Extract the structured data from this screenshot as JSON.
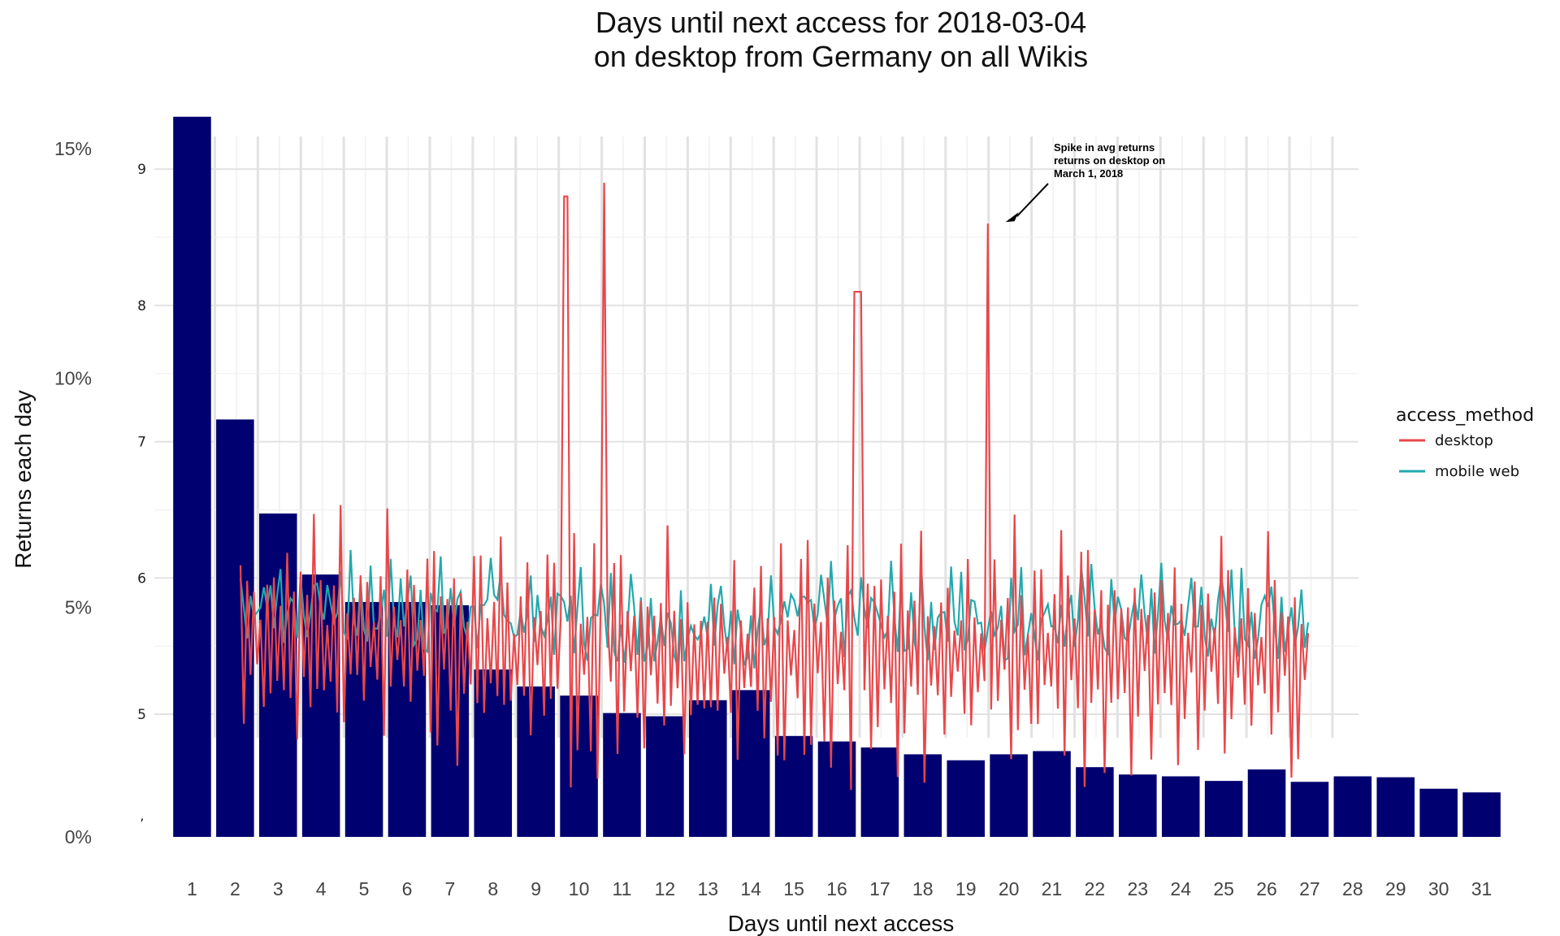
{
  "chart_data": {
    "type": "bar",
    "title": "Days until next access for 2018-03-04\non desktop from Germany on all Wikis",
    "xlabel": "Days until next access",
    "ylabel": "Returns each day",
    "categories": [
      "1",
      "2",
      "3",
      "4",
      "5",
      "6",
      "7",
      "8",
      "9",
      "10",
      "11",
      "12",
      "13",
      "14",
      "15",
      "16",
      "17",
      "18",
      "19",
      "20",
      "21",
      "22",
      "23",
      "24",
      "25",
      "26",
      "27",
      "28",
      "29",
      "30",
      "31"
    ],
    "y_left_ticks": [
      "0%",
      "5%",
      "10%",
      "15%"
    ],
    "y_left_range": [
      0,
      15.5
    ],
    "bar_color": "#000070",
    "series": [
      {
        "type": "bar",
        "axis": "left",
        "values": [
          15.7,
          9.1,
          7.05,
          5.72,
          5.12,
          5.12,
          5.05,
          3.65,
          3.28,
          3.08,
          2.7,
          2.63,
          2.98,
          3.2,
          2.2,
          2.08,
          1.95,
          1.8,
          1.67,
          1.8,
          1.87,
          1.52,
          1.36,
          1.32,
          1.22,
          1.47,
          1.2,
          1.32,
          1.3,
          1.05,
          0.97
        ]
      }
    ],
    "overlay": {
      "type": "line",
      "y_inner_ticks": [
        "5",
        "6",
        "7",
        "8",
        "9"
      ],
      "y_inner_range": [
        4.1,
        9.15
      ],
      "legend_title": "access_method",
      "legend_position": "right",
      "series": [
        {
          "name": "desktop",
          "color": "#E8474A"
        },
        {
          "name": "mobile web",
          "color": "#22A9AE"
        }
      ],
      "annotation": {
        "text": [
          "Spike in avg returns",
          "returns on desktop on",
          "March 1, 2018"
        ],
        "points_to_day": 20,
        "value": 8.6
      }
    },
    "grid": true
  }
}
